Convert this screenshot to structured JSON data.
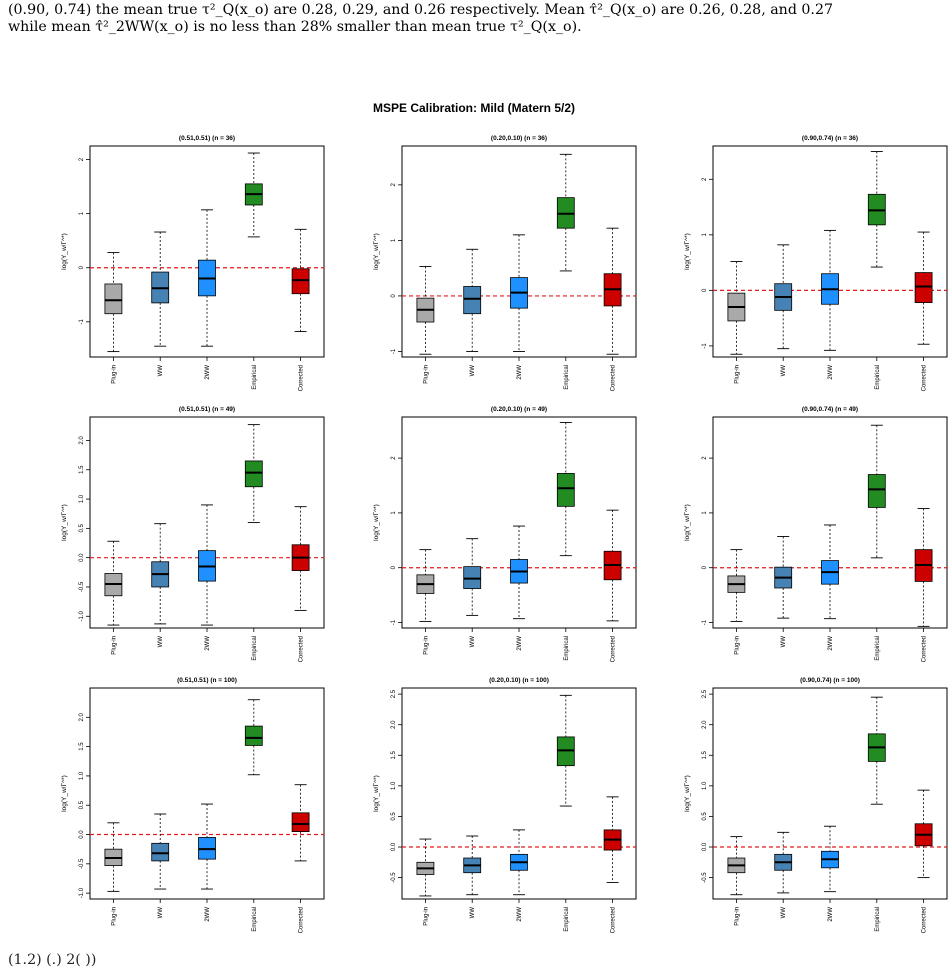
{
  "intro": {
    "line1": "(0.90, 0.74) the mean true τ²_Q(x_o) are 0.28, 0.29, and 0.26 respectively. Mean τ̂²_Q(x_o) are 0.26, 0.28, and 0.27",
    "line2": "while mean τ̂²_2WW(x_o) is no less than 28% smaller than mean true τ²_Q(x_o)."
  },
  "outro": {
    "line1": "(1.2)   (.) 2(  ))"
  },
  "chart_data": {
    "type": "boxplot",
    "title": "MSPE Calibration: Mild (Matern 5/2)",
    "categories": [
      "Plug-in",
      "WW",
      "2WW",
      "Empirical",
      "Corrected"
    ],
    "ylabel": "log(Y_w/Γ^*)",
    "reference_line": {
      "y": 0,
      "style": "dashed",
      "color": "#e41a1c"
    },
    "colors": {
      "Plug-in": "#a9a9a9",
      "WW": "#4682b4",
      "2WW": "#1e90ff",
      "Empirical": "#228b22",
      "Corrected": "#cd0000"
    },
    "panels": [
      {
        "title": "(0.51,0.51) (n = 36)",
        "ylim": [
          -1.65,
          2.25
        ],
        "yticks": [
          -1,
          0,
          1,
          2
        ],
        "ytick_labels": [
          "-1",
          "0",
          "1",
          "2"
        ],
        "boxes": [
          [
            -1.55,
            -0.85,
            -0.6,
            -0.3,
            0.28
          ],
          [
            -1.45,
            -0.65,
            -0.38,
            -0.08,
            0.66
          ],
          [
            -1.45,
            -0.52,
            -0.2,
            0.14,
            1.07
          ],
          [
            0.57,
            1.16,
            1.36,
            1.55,
            2.12
          ],
          [
            -1.18,
            -0.48,
            -0.23,
            -0.02,
            0.71
          ]
        ]
      },
      {
        "title": "(0.20,0.10) (n = 36)",
        "ylim": [
          -1.1,
          2.7
        ],
        "yticks": [
          -1,
          0,
          1,
          2
        ],
        "ytick_labels": [
          "-1",
          "0",
          "1",
          "2"
        ],
        "boxes": [
          [
            -1.05,
            -0.47,
            -0.25,
            -0.04,
            0.53
          ],
          [
            -1.0,
            -0.32,
            -0.05,
            0.17,
            0.84
          ],
          [
            -1.0,
            -0.22,
            0.06,
            0.33,
            1.1
          ],
          [
            0.45,
            1.22,
            1.48,
            1.77,
            2.55
          ],
          [
            -1.05,
            -0.18,
            0.12,
            0.4,
            1.22
          ]
        ]
      },
      {
        "title": "(0.90,0.74) (n = 36)",
        "ylim": [
          -1.2,
          2.6
        ],
        "yticks": [
          -1,
          0,
          1,
          2
        ],
        "ytick_labels": [
          "-1",
          "0",
          "1",
          "2"
        ],
        "boxes": [
          [
            -1.15,
            -0.55,
            -0.3,
            -0.05,
            0.52
          ],
          [
            -1.05,
            -0.36,
            -0.12,
            0.12,
            0.82
          ],
          [
            -1.08,
            -0.25,
            0.02,
            0.3,
            1.08
          ],
          [
            0.42,
            1.18,
            1.44,
            1.73,
            2.5
          ],
          [
            -0.97,
            -0.22,
            0.07,
            0.32,
            1.05
          ]
        ]
      },
      {
        "title": "(0.51,0.51) (n = 49)",
        "ylim": [
          -1.2,
          2.4
        ],
        "yticks": [
          -1,
          -0.5,
          0,
          0.5,
          1,
          1.5,
          2
        ],
        "ytick_labels": [
          "-1.0",
          "-0.5",
          "0.0",
          "0.5",
          "1.0",
          "1.5",
          "2.0"
        ],
        "boxes": [
          [
            -1.15,
            -0.65,
            -0.45,
            -0.27,
            0.28
          ],
          [
            -1.13,
            -0.5,
            -0.28,
            -0.07,
            0.58
          ],
          [
            -1.15,
            -0.4,
            -0.15,
            0.12,
            0.9
          ],
          [
            0.6,
            1.21,
            1.45,
            1.65,
            2.27
          ],
          [
            -0.9,
            -0.22,
            0.0,
            0.22,
            0.87
          ]
        ]
      },
      {
        "title": "(0.20,0.10) (n = 49)",
        "ylim": [
          -1.1,
          2.75
        ],
        "yticks": [
          -1,
          0,
          1,
          2
        ],
        "ytick_labels": [
          "-1",
          "0",
          "1",
          "2"
        ],
        "boxes": [
          [
            -0.98,
            -0.47,
            -0.3,
            -0.13,
            0.33
          ],
          [
            -0.87,
            -0.38,
            -0.2,
            0.02,
            0.53
          ],
          [
            -0.93,
            -0.28,
            -0.07,
            0.15,
            0.76
          ],
          [
            0.22,
            1.12,
            1.45,
            1.72,
            2.65
          ],
          [
            -0.97,
            -0.22,
            0.05,
            0.3,
            1.05
          ]
        ]
      },
      {
        "title": "(0.90,0.74) (n = 49)",
        "ylim": [
          -1.1,
          2.75
        ],
        "yticks": [
          -1,
          0,
          1,
          2
        ],
        "ytick_labels": [
          "-1",
          "0",
          "1",
          "2"
        ],
        "boxes": [
          [
            -0.98,
            -0.45,
            -0.3,
            -0.15,
            0.33
          ],
          [
            -0.92,
            -0.37,
            -0.18,
            0.01,
            0.57
          ],
          [
            -0.93,
            -0.3,
            -0.08,
            0.13,
            0.78
          ],
          [
            0.18,
            1.1,
            1.43,
            1.7,
            2.6
          ],
          [
            -1.07,
            -0.25,
            0.05,
            0.33,
            1.08
          ]
        ]
      },
      {
        "title": "(0.51,0.51) (n = 100)",
        "ylim": [
          -1.1,
          2.5
        ],
        "yticks": [
          -1,
          -0.5,
          0,
          0.5,
          1,
          1.5,
          2
        ],
        "ytick_labels": [
          "-1.0",
          "-0.5",
          "0.0",
          "0.5",
          "1.0",
          "1.5",
          "2.0"
        ],
        "boxes": [
          [
            -0.97,
            -0.53,
            -0.4,
            -0.25,
            0.2
          ],
          [
            -0.93,
            -0.45,
            -0.32,
            -0.15,
            0.35
          ],
          [
            -0.93,
            -0.42,
            -0.25,
            -0.05,
            0.52
          ],
          [
            1.02,
            1.52,
            1.65,
            1.85,
            2.3
          ],
          [
            -0.45,
            0.05,
            0.18,
            0.37,
            0.85
          ]
        ]
      },
      {
        "title": "(0.20,0.10) (n = 100)",
        "ylim": [
          -0.85,
          2.6
        ],
        "yticks": [
          -0.5,
          0,
          0.5,
          1,
          1.5,
          2,
          2.5
        ],
        "ytick_labels": [
          "-0.5",
          "0.0",
          "0.5",
          "1.0",
          "1.5",
          "2.0",
          "2.5"
        ],
        "boxes": [
          [
            -0.8,
            -0.45,
            -0.35,
            -0.25,
            0.13
          ],
          [
            -0.78,
            -0.42,
            -0.3,
            -0.18,
            0.18
          ],
          [
            -0.78,
            -0.38,
            -0.25,
            -0.12,
            0.28
          ],
          [
            0.67,
            1.33,
            1.58,
            1.8,
            2.48
          ],
          [
            -0.58,
            -0.05,
            0.12,
            0.28,
            0.82
          ]
        ]
      },
      {
        "title": "(0.90,0.74) (n = 100)",
        "ylim": [
          -0.85,
          2.6
        ],
        "yticks": [
          -0.5,
          0,
          0.5,
          1,
          1.5,
          2,
          2.5
        ],
        "ytick_labels": [
          "-0.5",
          "0.0",
          "0.5",
          "1.0",
          "1.5",
          "2.0",
          "2.5"
        ],
        "boxes": [
          [
            -0.78,
            -0.42,
            -0.3,
            -0.18,
            0.17
          ],
          [
            -0.75,
            -0.38,
            -0.25,
            -0.12,
            0.24
          ],
          [
            -0.73,
            -0.34,
            -0.2,
            -0.07,
            0.34
          ],
          [
            0.7,
            1.4,
            1.63,
            1.85,
            2.45
          ],
          [
            -0.5,
            0.02,
            0.2,
            0.38,
            0.93
          ]
        ]
      }
    ]
  }
}
